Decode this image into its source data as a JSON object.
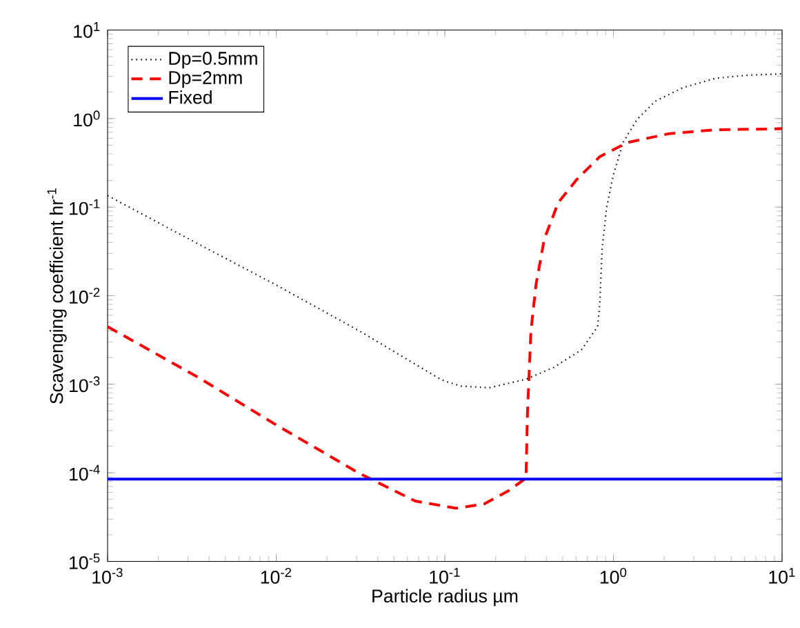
{
  "chart_data": {
    "type": "line",
    "xlabel": "Particle radius µm",
    "ylabel": "Scavenging coefficient hr$^{-1}$",
    "log": "xy",
    "xlim": [
      0.001,
      10
    ],
    "ylim": [
      1e-05,
      10
    ],
    "xticks": [
      {
        "value": 0.001,
        "label": "10$^{-3}$"
      },
      {
        "value": 0.01,
        "label": "10$^{-2}$"
      },
      {
        "value": 0.1,
        "label": "10$^{-1}$"
      },
      {
        "value": 1,
        "label": "10$^{0}$"
      },
      {
        "value": 10,
        "label": "10$^{1}$"
      }
    ],
    "yticks": [
      {
        "value": 1e-05,
        "label": "10$^{-5}$"
      },
      {
        "value": 0.0001,
        "label": "10$^{-4}$"
      },
      {
        "value": 0.001,
        "label": "10$^{-3}$"
      },
      {
        "value": 0.01,
        "label": "10$^{-2}$"
      },
      {
        "value": 0.1,
        "label": "10$^{-1}$"
      },
      {
        "value": 1,
        "label": "10$^{0}$"
      },
      {
        "value": 10,
        "label": "10$^{1}$"
      }
    ],
    "legend": "top left",
    "grid": false,
    "marker": "none",
    "series": [
      {
        "name": "Dp=0.5mm",
        "color": "#000000",
        "line_style": "dotted",
        "x": [
          0.001,
          0.00344,
          0.01,
          0.0313,
          0.0942,
          0.102,
          0.125,
          0.183,
          0.303,
          0.443,
          0.646,
          0.805,
          0.83,
          0.857,
          0.912,
          1,
          1.14,
          1.38,
          1.77,
          2.59,
          4.03,
          6.27,
          10
        ],
        "values": [
          0.135,
          0.0385,
          0.0132,
          0.00398,
          0.00114,
          0.00107,
          0.000955,
          0.000912,
          0.00114,
          0.00155,
          0.00245,
          0.00447,
          0.00813,
          0.0342,
          0.1,
          0.234,
          0.537,
          0.977,
          1.57,
          2.24,
          2.85,
          3.09,
          3.2
        ]
      },
      {
        "name": "Dp=2mm",
        "color": "#ff0000",
        "line_style": "dashed",
        "x": [
          0.001,
          0.00344,
          0.01,
          0.0313,
          0.0589,
          0.0667,
          0.117,
          0.172,
          0.236,
          0.303,
          0.309,
          0.324,
          0.347,
          0.389,
          0.471,
          0.607,
          0.83,
          1.21,
          2.14,
          4.03,
          10
        ],
        "values": [
          0.00447,
          0.0012,
          0.000347,
          9.8e-05,
          5.4e-05,
          4.8e-05,
          3.98e-05,
          4.47e-05,
          6.2e-05,
          8.7e-05,
          0.00047,
          0.00398,
          0.0132,
          0.0437,
          0.113,
          0.206,
          0.372,
          0.537,
          0.676,
          0.748,
          0.767
        ]
      },
      {
        "name": "Fixed",
        "color": "#0000ff",
        "line_style": "solid",
        "x": [
          0.001,
          10
        ],
        "values": [
          8.5e-05,
          8.5e-05
        ]
      }
    ]
  }
}
